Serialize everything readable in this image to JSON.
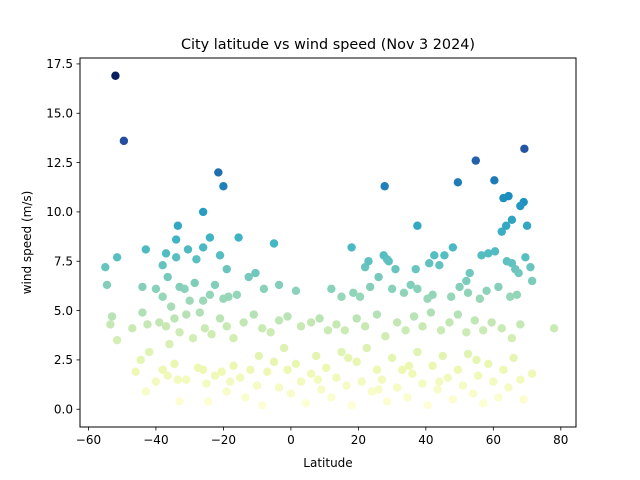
{
  "chart_data": {
    "type": "scatter",
    "title": "City latitude vs wind speed (Nov 3 2024)",
    "xlabel": "Latitude",
    "ylabel": "wind speed (m/s)",
    "xlim": [
      -62.5,
      84.5
    ],
    "ylim": [
      -0.9,
      17.8
    ],
    "xticks": [
      -60,
      -40,
      -20,
      0,
      20,
      40,
      60,
      80
    ],
    "xtick_labels": [
      "−60",
      "−40",
      "−20",
      "0",
      "20",
      "40",
      "60",
      "80"
    ],
    "yticks": [
      0.0,
      2.5,
      5.0,
      7.5,
      10.0,
      12.5,
      15.0,
      17.5
    ],
    "ytick_labels": [
      "0.0",
      "2.5",
      "5.0",
      "7.5",
      "10.0",
      "12.5",
      "15.0",
      "17.5"
    ],
    "grid": false,
    "legend": "none",
    "colormap": "YlGnBu",
    "color_by": "wind speed",
    "color_range": [
      0.0,
      17.0
    ],
    "points": [
      [
        -52.0,
        16.9
      ],
      [
        -49.5,
        13.6
      ],
      [
        -21.5,
        12.0
      ],
      [
        -20.0,
        11.3
      ],
      [
        -26.0,
        10.0
      ],
      [
        27.8,
        11.3
      ],
      [
        49.5,
        11.5
      ],
      [
        54.8,
        12.6
      ],
      [
        60.3,
        11.6
      ],
      [
        69.2,
        13.2
      ],
      [
        69.0,
        10.5
      ],
      [
        68.0,
        10.3
      ],
      [
        70.0,
        9.3
      ],
      [
        65.5,
        9.6
      ],
      [
        64.5,
        10.8
      ],
      [
        63.0,
        10.7
      ],
      [
        62.5,
        9.0
      ],
      [
        63.8,
        9.3
      ],
      [
        -55.0,
        7.2
      ],
      [
        -51.5,
        7.7
      ],
      [
        -54.5,
        6.3
      ],
      [
        -43.0,
        8.1
      ],
      [
        -38.0,
        7.3
      ],
      [
        -37.0,
        7.9
      ],
      [
        -33.5,
        9.3
      ],
      [
        -34.0,
        8.6
      ],
      [
        -30.5,
        8.1
      ],
      [
        -28.0,
        7.6
      ],
      [
        -26.0,
        8.2
      ],
      [
        -24.0,
        8.7
      ],
      [
        -21.0,
        7.8
      ],
      [
        -19.0,
        7.1
      ],
      [
        -15.5,
        8.7
      ],
      [
        -34.0,
        7.7
      ],
      [
        -36.5,
        6.7
      ],
      [
        -5.0,
        8.4
      ],
      [
        18.0,
        8.2
      ],
      [
        22.0,
        7.2
      ],
      [
        23.0,
        7.5
      ],
      [
        26.0,
        6.7
      ],
      [
        27.5,
        7.8
      ],
      [
        28.5,
        7.6
      ],
      [
        29.0,
        7.5
      ],
      [
        31.0,
        7.1
      ],
      [
        37.0,
        7.1
      ],
      [
        37.5,
        9.3
      ],
      [
        41.0,
        7.4
      ],
      [
        42.5,
        7.8
      ],
      [
        45.5,
        7.8
      ],
      [
        48.0,
        8.2
      ],
      [
        52.0,
        6.5
      ],
      [
        53.0,
        6.9
      ],
      [
        56.5,
        7.8
      ],
      [
        58.5,
        7.9
      ],
      [
        60.5,
        8.0
      ],
      [
        64.0,
        7.5
      ],
      [
        65.5,
        7.4
      ],
      [
        66.5,
        7.1
      ],
      [
        67.5,
        6.9
      ],
      [
        69.5,
        7.7
      ],
      [
        71.0,
        7.2
      ],
      [
        71.5,
        6.5
      ],
      [
        44.0,
        7.3
      ],
      [
        -44.0,
        6.2
      ],
      [
        -40.0,
        6.1
      ],
      [
        -38.0,
        5.7
      ],
      [
        -35.5,
        5.2
      ],
      [
        -33.0,
        6.2
      ],
      [
        -31.5,
        6.1
      ],
      [
        -30.0,
        5.5
      ],
      [
        -28.5,
        6.4
      ],
      [
        -26.0,
        5.5
      ],
      [
        -24.0,
        5.8
      ],
      [
        -22.5,
        6.3
      ],
      [
        -20.0,
        5.6
      ],
      [
        -18.5,
        5.7
      ],
      [
        -16.0,
        5.8
      ],
      [
        -12.5,
        6.7
      ],
      [
        -10.5,
        6.9
      ],
      [
        -8.0,
        6.1
      ],
      [
        -3.5,
        6.3
      ],
      [
        1.5,
        6.0
      ],
      [
        12.0,
        6.1
      ],
      [
        15.0,
        5.7
      ],
      [
        18.5,
        5.9
      ],
      [
        20.5,
        5.7
      ],
      [
        23.5,
        6.2
      ],
      [
        30.0,
        6.1
      ],
      [
        33.5,
        5.9
      ],
      [
        35.5,
        6.3
      ],
      [
        37.5,
        6.1
      ],
      [
        40.5,
        5.6
      ],
      [
        42.0,
        5.8
      ],
      [
        47.5,
        5.7
      ],
      [
        50.0,
        6.2
      ],
      [
        52.5,
        5.9
      ],
      [
        56.0,
        5.6
      ],
      [
        58.0,
        6.0
      ],
      [
        61.5,
        6.2
      ],
      [
        65.0,
        5.7
      ],
      [
        67.0,
        5.8
      ],
      [
        -53.0,
        4.7
      ],
      [
        -53.5,
        4.3
      ],
      [
        -51.5,
        3.5
      ],
      [
        -47.0,
        4.1
      ],
      [
        -44.0,
        4.9
      ],
      [
        -42.5,
        4.3
      ],
      [
        -39.0,
        4.4
      ],
      [
        -37.0,
        4.2
      ],
      [
        -36.0,
        3.3
      ],
      [
        -34.5,
        4.6
      ],
      [
        -33.0,
        3.9
      ],
      [
        -31.0,
        4.8
      ],
      [
        -29.0,
        3.6
      ],
      [
        -27.0,
        4.9
      ],
      [
        -25.5,
        4.1
      ],
      [
        -23.5,
        3.8
      ],
      [
        -21.0,
        4.6
      ],
      [
        -19.0,
        4.2
      ],
      [
        -17.0,
        3.6
      ],
      [
        -14.0,
        4.4
      ],
      [
        -11.0,
        4.8
      ],
      [
        -8.5,
        4.1
      ],
      [
        -6.0,
        3.9
      ],
      [
        -3.5,
        4.5
      ],
      [
        -1.0,
        4.7
      ],
      [
        3.0,
        4.2
      ],
      [
        6.0,
        4.4
      ],
      [
        8.5,
        4.6
      ],
      [
        11.0,
        4.0
      ],
      [
        13.5,
        4.3
      ],
      [
        16.0,
        4.0
      ],
      [
        19.5,
        4.6
      ],
      [
        22.0,
        4.2
      ],
      [
        25.5,
        4.8
      ],
      [
        28.0,
        3.7
      ],
      [
        31.5,
        4.4
      ],
      [
        34.0,
        4.0
      ],
      [
        36.5,
        4.7
      ],
      [
        39.0,
        4.2
      ],
      [
        41.5,
        4.9
      ],
      [
        44.5,
        4.0
      ],
      [
        47.0,
        4.4
      ],
      [
        49.5,
        4.8
      ],
      [
        52.0,
        3.9
      ],
      [
        54.5,
        4.5
      ],
      [
        57.0,
        4.0
      ],
      [
        59.5,
        4.4
      ],
      [
        62.5,
        4.1
      ],
      [
        65.5,
        3.6
      ],
      [
        68.0,
        4.3
      ],
      [
        78.0,
        4.1
      ],
      [
        -44.5,
        2.5
      ],
      [
        -42.0,
        2.9
      ],
      [
        -46.0,
        1.9
      ],
      [
        -43.0,
        0.9
      ],
      [
        -40.0,
        1.4
      ],
      [
        -36.5,
        1.7
      ],
      [
        -33.5,
        1.5
      ],
      [
        -34.5,
        2.3
      ],
      [
        -31.0,
        1.5
      ],
      [
        -33.0,
        0.4
      ],
      [
        -27.5,
        2.1
      ],
      [
        -25.0,
        1.3
      ],
      [
        -24.5,
        0.4
      ],
      [
        -22.5,
        1.7
      ],
      [
        -20.5,
        1.9
      ],
      [
        -19.0,
        0.9
      ],
      [
        -17.0,
        2.2
      ],
      [
        -15.0,
        1.6
      ],
      [
        -13.5,
        0.6
      ],
      [
        -12.0,
        2.0
      ],
      [
        -10.0,
        1.2
      ],
      [
        -8.5,
        0.2
      ],
      [
        -7.0,
        1.9
      ],
      [
        -5.0,
        2.4
      ],
      [
        -3.5,
        1.1
      ],
      [
        -2.0,
        3.1
      ],
      [
        0.0,
        0.8
      ],
      [
        1.5,
        2.3
      ],
      [
        3.0,
        1.4
      ],
      [
        4.5,
        0.3
      ],
      [
        6.0,
        1.8
      ],
      [
        7.5,
        2.7
      ],
      [
        9.0,
        1.0
      ],
      [
        10.5,
        2.1
      ],
      [
        12.0,
        0.6
      ],
      [
        13.5,
        1.6
      ],
      [
        15.0,
        2.9
      ],
      [
        16.5,
        1.2
      ],
      [
        18.0,
        0.2
      ],
      [
        19.5,
        2.4
      ],
      [
        21.0,
        1.4
      ],
      [
        22.5,
        3.1
      ],
      [
        24.0,
        0.9
      ],
      [
        25.5,
        2.0
      ],
      [
        27.0,
        1.5
      ],
      [
        28.5,
        0.4
      ],
      [
        30.0,
        2.6
      ],
      [
        31.5,
        1.1
      ],
      [
        33.0,
        2.0
      ],
      [
        34.5,
        0.6
      ],
      [
        36.0,
        1.8
      ],
      [
        37.5,
        2.9
      ],
      [
        39.0,
        1.3
      ],
      [
        40.5,
        0.2
      ],
      [
        42.0,
        2.2
      ],
      [
        43.5,
        1.0
      ],
      [
        45.0,
        2.7
      ],
      [
        46.5,
        1.6
      ],
      [
        48.0,
        0.5
      ],
      [
        49.5,
        2.0
      ],
      [
        51.0,
        1.2
      ],
      [
        52.5,
        2.8
      ],
      [
        54.0,
        0.8
      ],
      [
        55.5,
        1.7
      ],
      [
        57.0,
        0.3
      ],
      [
        58.5,
        2.3
      ],
      [
        60.0,
        1.4
      ],
      [
        61.5,
        0.6
      ],
      [
        63.0,
        2.0
      ],
      [
        64.5,
        1.1
      ],
      [
        66.0,
        2.6
      ],
      [
        68.0,
        1.5
      ],
      [
        69.0,
        0.5
      ],
      [
        71.5,
        1.8
      ],
      [
        55.0,
        2.5
      ],
      [
        44.0,
        1.4
      ],
      [
        35.0,
        2.2
      ],
      [
        26.0,
        1.0
      ],
      [
        17.0,
        2.6
      ],
      [
        8.0,
        1.5
      ],
      [
        -1.0,
        2.0
      ],
      [
        -9.5,
        2.7
      ],
      [
        -18.0,
        1.4
      ],
      [
        -26.0,
        2.0
      ],
      [
        -38.0,
        2.0
      ]
    ]
  }
}
